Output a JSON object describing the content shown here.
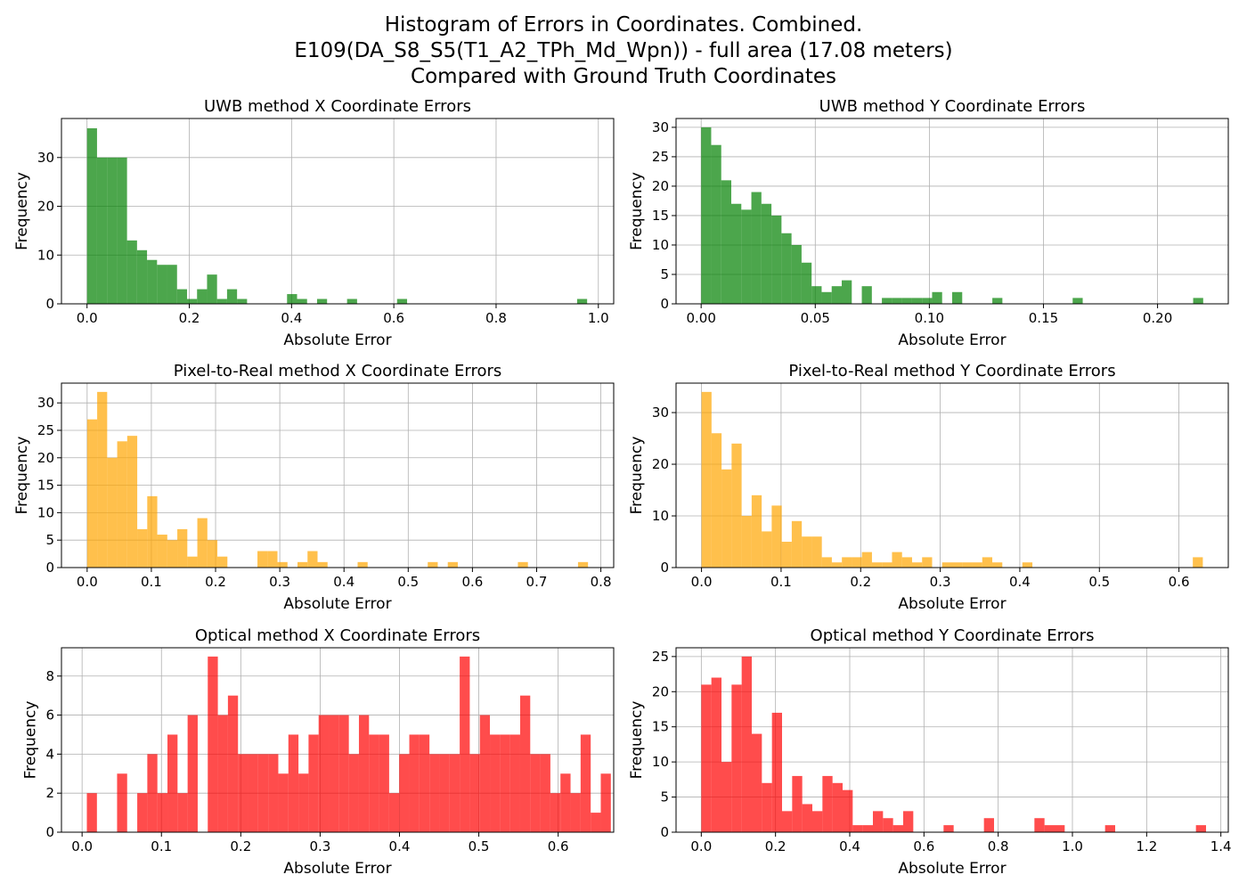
{
  "suptitle": [
    "Histogram of Errors in Coordinates. Combined.",
    "E109(DA_S8_S5(T1_A2_TPh_Md_Wpn)) - full area (17.08 meters)",
    "Compared with Ground Truth Coordinates"
  ],
  "chart_data": [
    {
      "type": "bar",
      "title": "UWB method X Coordinate Errors",
      "xlabel": "Absolute Error",
      "ylabel": "Frequency",
      "color": "#008000",
      "opacity": 0.7,
      "grid": true,
      "xlim": [
        -0.05,
        1.03
      ],
      "ylim": [
        0,
        38
      ],
      "xticks": [
        0.0,
        0.2,
        0.4,
        0.6,
        0.8,
        1.0
      ],
      "xtick_labels": [
        "0.0",
        "0.2",
        "0.4",
        "0.6",
        "0.8",
        "1.0"
      ],
      "yticks": [
        0,
        10,
        20,
        30
      ],
      "ytick_labels": [
        "0",
        "10",
        "20",
        "30"
      ],
      "bin_start": 0.0,
      "bin_width": 0.01956,
      "values": [
        36,
        30,
        30,
        30,
        13,
        11,
        9,
        8,
        8,
        3,
        1,
        3,
        6,
        1,
        3,
        1,
        0,
        0,
        0,
        0,
        2,
        1,
        0,
        1,
        0,
        0,
        1,
        0,
        0,
        0,
        0,
        1,
        0,
        0,
        0,
        0,
        0,
        0,
        0,
        0,
        0,
        0,
        0,
        0,
        0,
        0,
        0,
        0,
        0,
        1
      ]
    },
    {
      "type": "bar",
      "title": "UWB method Y Coordinate Errors",
      "xlabel": "Absolute Error",
      "ylabel": "Frequency",
      "color": "#008000",
      "opacity": 0.7,
      "grid": true,
      "xlim": [
        -0.011,
        0.231
      ],
      "ylim": [
        0,
        31.5
      ],
      "xticks": [
        0.0,
        0.05,
        0.1,
        0.15,
        0.2
      ],
      "xtick_labels": [
        "0.00",
        "0.05",
        "0.10",
        "0.15",
        "0.20"
      ],
      "yticks": [
        0,
        5,
        10,
        15,
        20,
        25,
        30
      ],
      "ytick_labels": [
        "0",
        "5",
        "10",
        "15",
        "20",
        "25",
        "30"
      ],
      "bin_start": 0.0,
      "bin_width": 0.0044,
      "values": [
        30,
        27,
        21,
        17,
        16,
        19,
        17,
        15,
        12,
        10,
        7,
        3,
        2,
        3,
        4,
        0,
        3,
        0,
        1,
        1,
        1,
        1,
        1,
        2,
        0,
        2,
        0,
        0,
        0,
        1,
        0,
        0,
        0,
        0,
        0,
        0,
        0,
        1,
        0,
        0,
        0,
        0,
        0,
        0,
        0,
        0,
        0,
        0,
        0,
        1
      ]
    },
    {
      "type": "bar",
      "title": "Pixel-to-Real method X Coordinate Errors",
      "xlabel": "Absolute Error",
      "ylabel": "Frequency",
      "color": "#FFA500",
      "opacity": 0.7,
      "grid": true,
      "xlim": [
        -0.04,
        0.82
      ],
      "ylim": [
        0,
        33.6
      ],
      "xticks": [
        0.0,
        0.1,
        0.2,
        0.3,
        0.4,
        0.5,
        0.6,
        0.7,
        0.8
      ],
      "xtick_labels": [
        "0.0",
        "0.1",
        "0.2",
        "0.3",
        "0.4",
        "0.5",
        "0.6",
        "0.7",
        "0.8"
      ],
      "yticks": [
        0,
        5,
        10,
        15,
        20,
        25,
        30
      ],
      "ytick_labels": [
        "0",
        "5",
        "10",
        "15",
        "20",
        "25",
        "30"
      ],
      "bin_start": 0.0,
      "bin_width": 0.0156,
      "values": [
        27,
        32,
        20,
        23,
        24,
        7,
        13,
        6,
        5,
        7,
        2,
        9,
        5,
        2,
        0,
        0,
        0,
        3,
        3,
        1,
        0,
        1,
        3,
        1,
        0,
        0,
        0,
        1,
        0,
        0,
        0,
        0,
        0,
        0,
        1,
        0,
        1,
        0,
        0,
        0,
        0,
        0,
        0,
        1,
        0,
        0,
        0,
        0,
        0,
        1
      ]
    },
    {
      "type": "bar",
      "title": "Pixel-to-Real method Y Coordinate Errors",
      "xlabel": "Absolute Error",
      "ylabel": "Frequency",
      "color": "#FFA500",
      "opacity": 0.7,
      "grid": true,
      "xlim": [
        -0.032,
        0.662
      ],
      "ylim": [
        0,
        35.7
      ],
      "xticks": [
        0.0,
        0.1,
        0.2,
        0.3,
        0.4,
        0.5,
        0.6
      ],
      "xtick_labels": [
        "0.0",
        "0.1",
        "0.2",
        "0.3",
        "0.4",
        "0.5",
        "0.6"
      ],
      "yticks": [
        0,
        10,
        20,
        30
      ],
      "ytick_labels": [
        "0",
        "10",
        "20",
        "30"
      ],
      "bin_start": 0.0,
      "bin_width": 0.0126,
      "values": [
        34,
        26,
        19,
        24,
        10,
        14,
        7,
        12,
        5,
        9,
        6,
        6,
        2,
        1,
        2,
        2,
        3,
        1,
        1,
        3,
        2,
        1,
        2,
        0,
        1,
        1,
        1,
        1,
        2,
        1,
        0,
        0,
        1,
        0,
        0,
        0,
        0,
        0,
        0,
        0,
        0,
        0,
        0,
        0,
        0,
        0,
        0,
        0,
        0,
        2
      ]
    },
    {
      "type": "bar",
      "title": "Optical method X Coordinate Errors",
      "xlabel": "Absolute Error",
      "ylabel": "Frequency",
      "color": "#FF0000",
      "opacity": 0.7,
      "grid": true,
      "xlim": [
        -0.026,
        0.67
      ],
      "ylim": [
        0,
        9.45
      ],
      "xticks": [
        0.0,
        0.1,
        0.2,
        0.3,
        0.4,
        0.5,
        0.6
      ],
      "xtick_labels": [
        "0.0",
        "0.1",
        "0.2",
        "0.3",
        "0.4",
        "0.5",
        "0.6"
      ],
      "yticks": [
        0,
        2,
        4,
        6,
        8
      ],
      "ytick_labels": [
        "0",
        "2",
        "4",
        "6",
        "8"
      ],
      "bin_start": 0.006,
      "bin_width": 0.0127,
      "values": [
        2,
        0,
        0,
        3,
        0,
        2,
        4,
        2,
        5,
        2,
        6,
        0,
        9,
        6,
        7,
        4,
        4,
        4,
        4,
        3,
        5,
        3,
        5,
        6,
        6,
        6,
        4,
        6,
        5,
        5,
        2,
        4,
        5,
        5,
        4,
        4,
        4,
        9,
        4,
        6,
        5,
        5,
        5,
        7,
        4,
        4,
        2,
        3,
        2,
        5,
        1,
        3
      ]
    },
    {
      "type": "bar",
      "title": "Optical method Y Coordinate Errors",
      "xlabel": "Absolute Error",
      "ylabel": "Frequency",
      "color": "#FF0000",
      "opacity": 0.7,
      "grid": true,
      "xlim": [
        -0.068,
        1.42
      ],
      "ylim": [
        0,
        26.25
      ],
      "xticks": [
        0.0,
        0.2,
        0.4,
        0.6,
        0.8,
        1.0,
        1.2,
        1.4
      ],
      "xtick_labels": [
        "0.0",
        "0.2",
        "0.4",
        "0.6",
        "0.8",
        "1.0",
        "1.2",
        "1.4"
      ],
      "yticks": [
        0,
        5,
        10,
        15,
        20,
        25
      ],
      "ytick_labels": [
        "0",
        "5",
        "10",
        "15",
        "20",
        "25"
      ],
      "bin_start": 0.0,
      "bin_width": 0.0272,
      "values": [
        21,
        22,
        10,
        21,
        25,
        14,
        7,
        17,
        3,
        8,
        4,
        3,
        8,
        7,
        6,
        1,
        1,
        3,
        2,
        1,
        3,
        0,
        0,
        0,
        1,
        0,
        0,
        0,
        2,
        0,
        0,
        0,
        0,
        2,
        1,
        1,
        0,
        0,
        0,
        0,
        1,
        0,
        0,
        0,
        0,
        0,
        0,
        0,
        0,
        1
      ]
    }
  ]
}
